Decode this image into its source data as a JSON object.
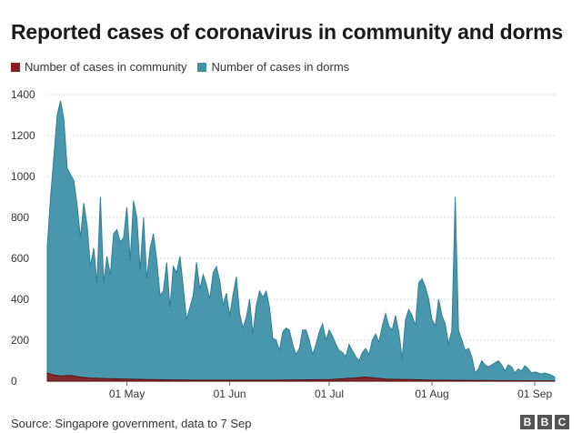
{
  "title": "Reported cases of coronavirus in community and dorms",
  "legend": [
    {
      "label": "Number of cases in community",
      "color": "#8b1e1e"
    },
    {
      "label": "Number of cases in dorms",
      "color": "#3f91a8"
    }
  ],
  "source": "Source: Singapore government, data to 7 Sep",
  "logo": [
    "B",
    "B",
    "C"
  ],
  "chart_data": {
    "type": "area",
    "ylim": [
      0,
      1400
    ],
    "yticks": [
      0,
      200,
      400,
      600,
      800,
      1000,
      1200,
      1400
    ],
    "xticks": [
      {
        "label": "01 May",
        "date": "2020-05-01"
      },
      {
        "label": "01 Jun",
        "date": "2020-06-01"
      },
      {
        "label": "01 Jul",
        "date": "2020-07-01"
      },
      {
        "label": "01 Aug",
        "date": "2020-08-01"
      },
      {
        "label": "01 Sep",
        "date": "2020-09-01"
      }
    ],
    "x_start": "2020-04-07",
    "x_end": "2020-09-07",
    "grid": true,
    "legend_position": "top-left",
    "series": [
      {
        "name": "Number of cases in dorms",
        "color": "#3f91a8",
        "points": [
          [
            "2020-04-07",
            660
          ],
          [
            "2020-04-08",
            900
          ],
          [
            "2020-04-09",
            1100
          ],
          [
            "2020-04-10",
            1300
          ],
          [
            "2020-04-11",
            1370
          ],
          [
            "2020-04-12",
            1280
          ],
          [
            "2020-04-13",
            1040
          ],
          [
            "2020-04-14",
            1010
          ],
          [
            "2020-04-15",
            980
          ],
          [
            "2020-04-16",
            860
          ],
          [
            "2020-04-17",
            700
          ],
          [
            "2020-04-18",
            870
          ],
          [
            "2020-04-19",
            760
          ],
          [
            "2020-04-20",
            560
          ],
          [
            "2020-04-21",
            650
          ],
          [
            "2020-04-22",
            480
          ],
          [
            "2020-04-23",
            900
          ],
          [
            "2020-04-24",
            480
          ],
          [
            "2020-04-25",
            610
          ],
          [
            "2020-04-26",
            520
          ],
          [
            "2020-04-27",
            720
          ],
          [
            "2020-04-28",
            740
          ],
          [
            "2020-04-29",
            680
          ],
          [
            "2020-04-30",
            700
          ],
          [
            "2020-05-01",
            850
          ],
          [
            "2020-05-02",
            590
          ],
          [
            "2020-05-03",
            880
          ],
          [
            "2020-05-04",
            800
          ],
          [
            "2020-05-05",
            540
          ],
          [
            "2020-05-06",
            800
          ],
          [
            "2020-05-07",
            500
          ],
          [
            "2020-05-08",
            650
          ],
          [
            "2020-05-09",
            720
          ],
          [
            "2020-05-10",
            590
          ],
          [
            "2020-05-11",
            420
          ],
          [
            "2020-05-12",
            440
          ],
          [
            "2020-05-13",
            580
          ],
          [
            "2020-05-14",
            360
          ],
          [
            "2020-05-15",
            560
          ],
          [
            "2020-05-16",
            530
          ],
          [
            "2020-05-17",
            610
          ],
          [
            "2020-05-18",
            460
          ],
          [
            "2020-05-19",
            300
          ],
          [
            "2020-05-20",
            360
          ],
          [
            "2020-05-21",
            420
          ],
          [
            "2020-05-22",
            580
          ],
          [
            "2020-05-23",
            450
          ],
          [
            "2020-05-24",
            520
          ],
          [
            "2020-05-25",
            470
          ],
          [
            "2020-05-26",
            400
          ],
          [
            "2020-05-27",
            530
          ],
          [
            "2020-05-28",
            560
          ],
          [
            "2020-05-29",
            490
          ],
          [
            "2020-05-30",
            370
          ],
          [
            "2020-05-31",
            430
          ],
          [
            "2020-06-01",
            320
          ],
          [
            "2020-06-02",
            420
          ],
          [
            "2020-06-03",
            510
          ],
          [
            "2020-06-04",
            330
          ],
          [
            "2020-06-05",
            260
          ],
          [
            "2020-06-06",
            310
          ],
          [
            "2020-06-07",
            400
          ],
          [
            "2020-06-08",
            230
          ],
          [
            "2020-06-09",
            370
          ],
          [
            "2020-06-10",
            440
          ],
          [
            "2020-06-11",
            410
          ],
          [
            "2020-06-12",
            440
          ],
          [
            "2020-06-13",
            360
          ],
          [
            "2020-06-14",
            210
          ],
          [
            "2020-06-15",
            200
          ],
          [
            "2020-06-16",
            150
          ],
          [
            "2020-06-17",
            240
          ],
          [
            "2020-06-18",
            260
          ],
          [
            "2020-06-19",
            250
          ],
          [
            "2020-06-20",
            180
          ],
          [
            "2020-06-21",
            130
          ],
          [
            "2020-06-22",
            160
          ],
          [
            "2020-06-23",
            250
          ],
          [
            "2020-06-24",
            250
          ],
          [
            "2020-06-25",
            200
          ],
          [
            "2020-06-26",
            130
          ],
          [
            "2020-06-27",
            180
          ],
          [
            "2020-06-28",
            240
          ],
          [
            "2020-06-29",
            280
          ],
          [
            "2020-06-30",
            200
          ],
          [
            "2020-07-01",
            250
          ],
          [
            "2020-07-02",
            220
          ],
          [
            "2020-07-03",
            180
          ],
          [
            "2020-07-04",
            150
          ],
          [
            "2020-07-05",
            140
          ],
          [
            "2020-07-06",
            120
          ],
          [
            "2020-07-07",
            180
          ],
          [
            "2020-07-08",
            150
          ],
          [
            "2020-07-09",
            120
          ],
          [
            "2020-07-10",
            100
          ],
          [
            "2020-07-11",
            140
          ],
          [
            "2020-07-12",
            160
          ],
          [
            "2020-07-13",
            130
          ],
          [
            "2020-07-14",
            200
          ],
          [
            "2020-07-15",
            230
          ],
          [
            "2020-07-16",
            190
          ],
          [
            "2020-07-17",
            270
          ],
          [
            "2020-07-18",
            330
          ],
          [
            "2020-07-19",
            270
          ],
          [
            "2020-07-20",
            250
          ],
          [
            "2020-07-21",
            320
          ],
          [
            "2020-07-22",
            240
          ],
          [
            "2020-07-23",
            110
          ],
          [
            "2020-07-24",
            300
          ],
          [
            "2020-07-25",
            350
          ],
          [
            "2020-07-26",
            320
          ],
          [
            "2020-07-27",
            270
          ],
          [
            "2020-07-28",
            480
          ],
          [
            "2020-07-29",
            500
          ],
          [
            "2020-07-30",
            460
          ],
          [
            "2020-07-31",
            400
          ],
          [
            "2020-08-01",
            300
          ],
          [
            "2020-08-02",
            270
          ],
          [
            "2020-08-03",
            400
          ],
          [
            "2020-08-04",
            320
          ],
          [
            "2020-08-05",
            280
          ],
          [
            "2020-08-06",
            180
          ],
          [
            "2020-08-07",
            250
          ],
          [
            "2020-08-08",
            900
          ],
          [
            "2020-08-09",
            250
          ],
          [
            "2020-08-10",
            200
          ],
          [
            "2020-08-11",
            150
          ],
          [
            "2020-08-12",
            160
          ],
          [
            "2020-08-13",
            120
          ],
          [
            "2020-08-14",
            40
          ],
          [
            "2020-08-15",
            60
          ],
          [
            "2020-08-16",
            100
          ],
          [
            "2020-08-17",
            80
          ],
          [
            "2020-08-18",
            70
          ],
          [
            "2020-08-19",
            80
          ],
          [
            "2020-08-20",
            90
          ],
          [
            "2020-08-21",
            100
          ],
          [
            "2020-08-22",
            80
          ],
          [
            "2020-08-23",
            50
          ],
          [
            "2020-08-24",
            80
          ],
          [
            "2020-08-25",
            70
          ],
          [
            "2020-08-26",
            40
          ],
          [
            "2020-08-27",
            60
          ],
          [
            "2020-08-28",
            50
          ],
          [
            "2020-08-29",
            75
          ],
          [
            "2020-08-30",
            60
          ],
          [
            "2020-08-31",
            40
          ],
          [
            "2020-09-01",
            45
          ],
          [
            "2020-09-02",
            40
          ],
          [
            "2020-09-03",
            35
          ],
          [
            "2020-09-04",
            40
          ],
          [
            "2020-09-05",
            35
          ],
          [
            "2020-09-06",
            30
          ],
          [
            "2020-09-07",
            20
          ]
        ]
      },
      {
        "name": "Number of cases in community",
        "color": "#8b1e1e",
        "points": [
          [
            "2020-04-07",
            40
          ],
          [
            "2020-04-09",
            30
          ],
          [
            "2020-04-11",
            25
          ],
          [
            "2020-04-14",
            28
          ],
          [
            "2020-04-17",
            20
          ],
          [
            "2020-04-20",
            15
          ],
          [
            "2020-04-25",
            12
          ],
          [
            "2020-05-01",
            10
          ],
          [
            "2020-05-08",
            8
          ],
          [
            "2020-05-15",
            6
          ],
          [
            "2020-05-22",
            5
          ],
          [
            "2020-06-01",
            5
          ],
          [
            "2020-06-15",
            5
          ],
          [
            "2020-07-01",
            8
          ],
          [
            "2020-07-08",
            15
          ],
          [
            "2020-07-12",
            20
          ],
          [
            "2020-07-18",
            10
          ],
          [
            "2020-07-25",
            8
          ],
          [
            "2020-08-01",
            5
          ],
          [
            "2020-08-15",
            3
          ],
          [
            "2020-09-01",
            2
          ],
          [
            "2020-09-07",
            1
          ]
        ]
      }
    ]
  }
}
